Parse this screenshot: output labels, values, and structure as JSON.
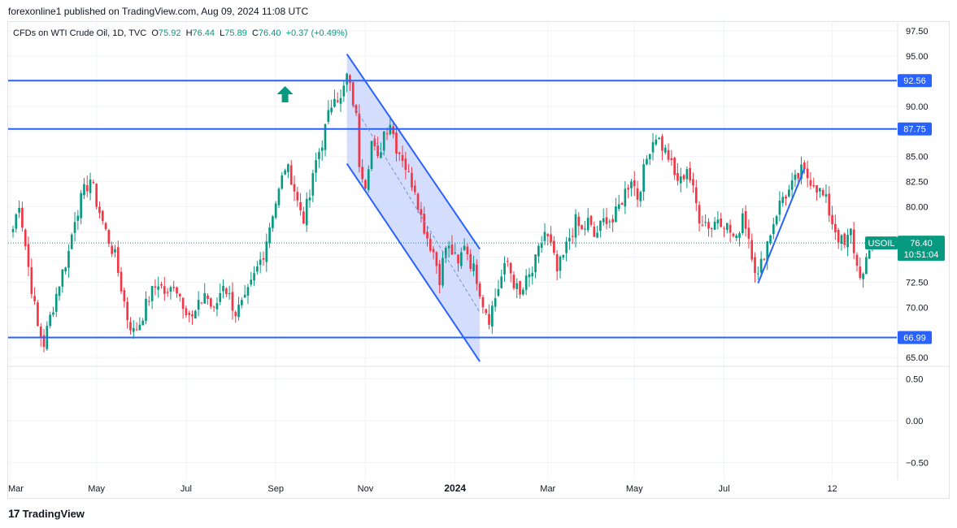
{
  "header": {
    "publisher_line": "forexonline1 published on TradingView.com, Aug 09, 2024 11:08 UTC"
  },
  "legend": {
    "symbol": "CFDs on WTI Crude Oil, 1D, TVC",
    "o_label": "O",
    "o": "75.92",
    "h_label": "H",
    "h": "76.44",
    "l_label": "L",
    "l": "75.89",
    "c_label": "C",
    "c": "76.40",
    "change": "+0.37 (+0.49%)"
  },
  "footer": {
    "brand": "TradingView",
    "logo_glyph": "17"
  },
  "colors": {
    "up": "#089981",
    "down": "#f23645",
    "line": "#2962ff",
    "channel_fill": "#c5d3fb",
    "grid": "#f0f3fa"
  },
  "chart_data": {
    "type": "candlestick",
    "symbol_tag": "USOIL",
    "last_price_label": "76.40",
    "countdown": "10:51:04",
    "y_ticks": [
      "97.50",
      "95.00",
      "92.50",
      "90.00",
      "87.50",
      "85.00",
      "82.50",
      "80.00",
      "77.50",
      "75.00",
      "72.50",
      "70.00",
      "67.50",
      "65.00"
    ],
    "ylim": [
      64.2,
      98.4
    ],
    "x_labels": [
      "Mar",
      "May",
      "Jul",
      "Sep",
      "Nov",
      "2024",
      "Mar",
      "May",
      "Jul",
      "12"
    ],
    "x_label_bold": "2024",
    "horizontal_levels": [
      {
        "value": 92.56,
        "label": "92.56"
      },
      {
        "value": 87.75,
        "label": "87.75"
      },
      {
        "value": 66.99,
        "label": "66.99"
      }
    ],
    "last_price": 76.4,
    "sub_pane": {
      "ticks": [
        "0.50",
        "0.00",
        "−0.50"
      ],
      "ylim": [
        -0.7,
        0.65
      ]
    },
    "anchors": [
      [
        0,
        77.8
      ],
      [
        2,
        80.5
      ],
      [
        5,
        74.0
      ],
      [
        8,
        68.0
      ],
      [
        10,
        66.4
      ],
      [
        12,
        69.0
      ],
      [
        15,
        72.5
      ],
      [
        18,
        75.5
      ],
      [
        20,
        79.0
      ],
      [
        23,
        81.5
      ],
      [
        25,
        82.8
      ],
      [
        27,
        80.5
      ],
      [
        30,
        77.5
      ],
      [
        33,
        75.0
      ],
      [
        35,
        72.0
      ],
      [
        37,
        69.0
      ],
      [
        39,
        67.5
      ],
      [
        41,
        68.5
      ],
      [
        44,
        71.0
      ],
      [
        47,
        72.5
      ],
      [
        50,
        71.0
      ],
      [
        52,
        72.5
      ],
      [
        55,
        70.5
      ],
      [
        58,
        68.8
      ],
      [
        60,
        70.0
      ],
      [
        62,
        71.5
      ],
      [
        65,
        69.5
      ],
      [
        68,
        72.5
      ],
      [
        70,
        71.0
      ],
      [
        72,
        69.5
      ],
      [
        75,
        70.5
      ],
      [
        78,
        73.0
      ],
      [
        81,
        75.5
      ],
      [
        84,
        79.5
      ],
      [
        86,
        81.5
      ],
      [
        88,
        84.0
      ],
      [
        90,
        83.0
      ],
      [
        92,
        80.5
      ],
      [
        94,
        79.0
      ],
      [
        96,
        81.0
      ],
      [
        98,
        84.5
      ],
      [
        100,
        86.5
      ],
      [
        102,
        89.0
      ],
      [
        104,
        91.5
      ],
      [
        106,
        90.5
      ],
      [
        108,
        93.0
      ],
      [
        110,
        90.5
      ],
      [
        111,
        88.8
      ],
      [
        112,
        84.5
      ],
      [
        114,
        82.5
      ],
      [
        116,
        86.5
      ],
      [
        118,
        84.5
      ],
      [
        120,
        87.5
      ],
      [
        122,
        88.5
      ],
      [
        124,
        86.0
      ],
      [
        126,
        85.0
      ],
      [
        128,
        83.0
      ],
      [
        130,
        82.0
      ],
      [
        132,
        79.0
      ],
      [
        134,
        77.0
      ],
      [
        136,
        75.5
      ],
      [
        138,
        73.0
      ],
      [
        140,
        76.0
      ],
      [
        142,
        75.5
      ],
      [
        144,
        74.0
      ],
      [
        146,
        76.5
      ],
      [
        148,
        74.5
      ],
      [
        150,
        73.0
      ],
      [
        152,
        70.5
      ],
      [
        154,
        69.0
      ],
      [
        156,
        71.0
      ],
      [
        158,
        73.0
      ],
      [
        160,
        74.5
      ],
      [
        162,
        72.5
      ],
      [
        164,
        71.0
      ],
      [
        166,
        72.5
      ],
      [
        168,
        73.5
      ],
      [
        170,
        75.5
      ],
      [
        172,
        77.5
      ],
      [
        174,
        76.0
      ],
      [
        176,
        73.5
      ],
      [
        178,
        75.0
      ],
      [
        180,
        77.0
      ],
      [
        182,
        78.5
      ],
      [
        184,
        77.5
      ],
      [
        186,
        78.5
      ],
      [
        188,
        77.0
      ],
      [
        190,
        78.0
      ],
      [
        192,
        79.0
      ],
      [
        194,
        78.5
      ],
      [
        196,
        80.0
      ],
      [
        198,
        81.5
      ],
      [
        200,
        83.0
      ],
      [
        202,
        81.0
      ],
      [
        204,
        83.5
      ],
      [
        206,
        86.0
      ],
      [
        208,
        87.2
      ],
      [
        210,
        86.0
      ],
      [
        212,
        85.0
      ],
      [
        214,
        83.0
      ],
      [
        216,
        82.5
      ],
      [
        218,
        84.0
      ],
      [
        220,
        81.5
      ],
      [
        222,
        79.0
      ],
      [
        224,
        78.5
      ],
      [
        226,
        78.0
      ],
      [
        228,
        79.0
      ],
      [
        230,
        78.5
      ],
      [
        232,
        77.5
      ],
      [
        234,
        76.5
      ],
      [
        236,
        79.5
      ],
      [
        238,
        77.0
      ],
      [
        240,
        74.0
      ],
      [
        241,
        73.0
      ],
      [
        243,
        75.5
      ],
      [
        245,
        77.5
      ],
      [
        247,
        79.5
      ],
      [
        249,
        81.0
      ],
      [
        251,
        81.5
      ],
      [
        253,
        82.5
      ],
      [
        255,
        83.5
      ],
      [
        257,
        83.0
      ],
      [
        259,
        82.5
      ],
      [
        261,
        81.5
      ],
      [
        263,
        80.5
      ],
      [
        265,
        78.5
      ],
      [
        267,
        77.0
      ],
      [
        269,
        76.0
      ],
      [
        271,
        77.5
      ],
      [
        273,
        74.0
      ],
      [
        275,
        73.0
      ],
      [
        277,
        75.5
      ],
      [
        278,
        76.4
      ]
    ],
    "channel": {
      "upper": [
        [
          108,
          95.2
        ],
        [
          151,
          75.8
        ]
      ],
      "lower": [
        [
          108,
          84.3
        ],
        [
          151,
          64.6
        ]
      ],
      "median": [
        [
          110,
          90.2
        ],
        [
          151,
          69.5
        ]
      ]
    },
    "rise_line": [
      [
        241,
        72.4
      ],
      [
        256,
        83.8
      ]
    ],
    "arrow_marker": {
      "index": 88,
      "value": 91.2
    }
  }
}
